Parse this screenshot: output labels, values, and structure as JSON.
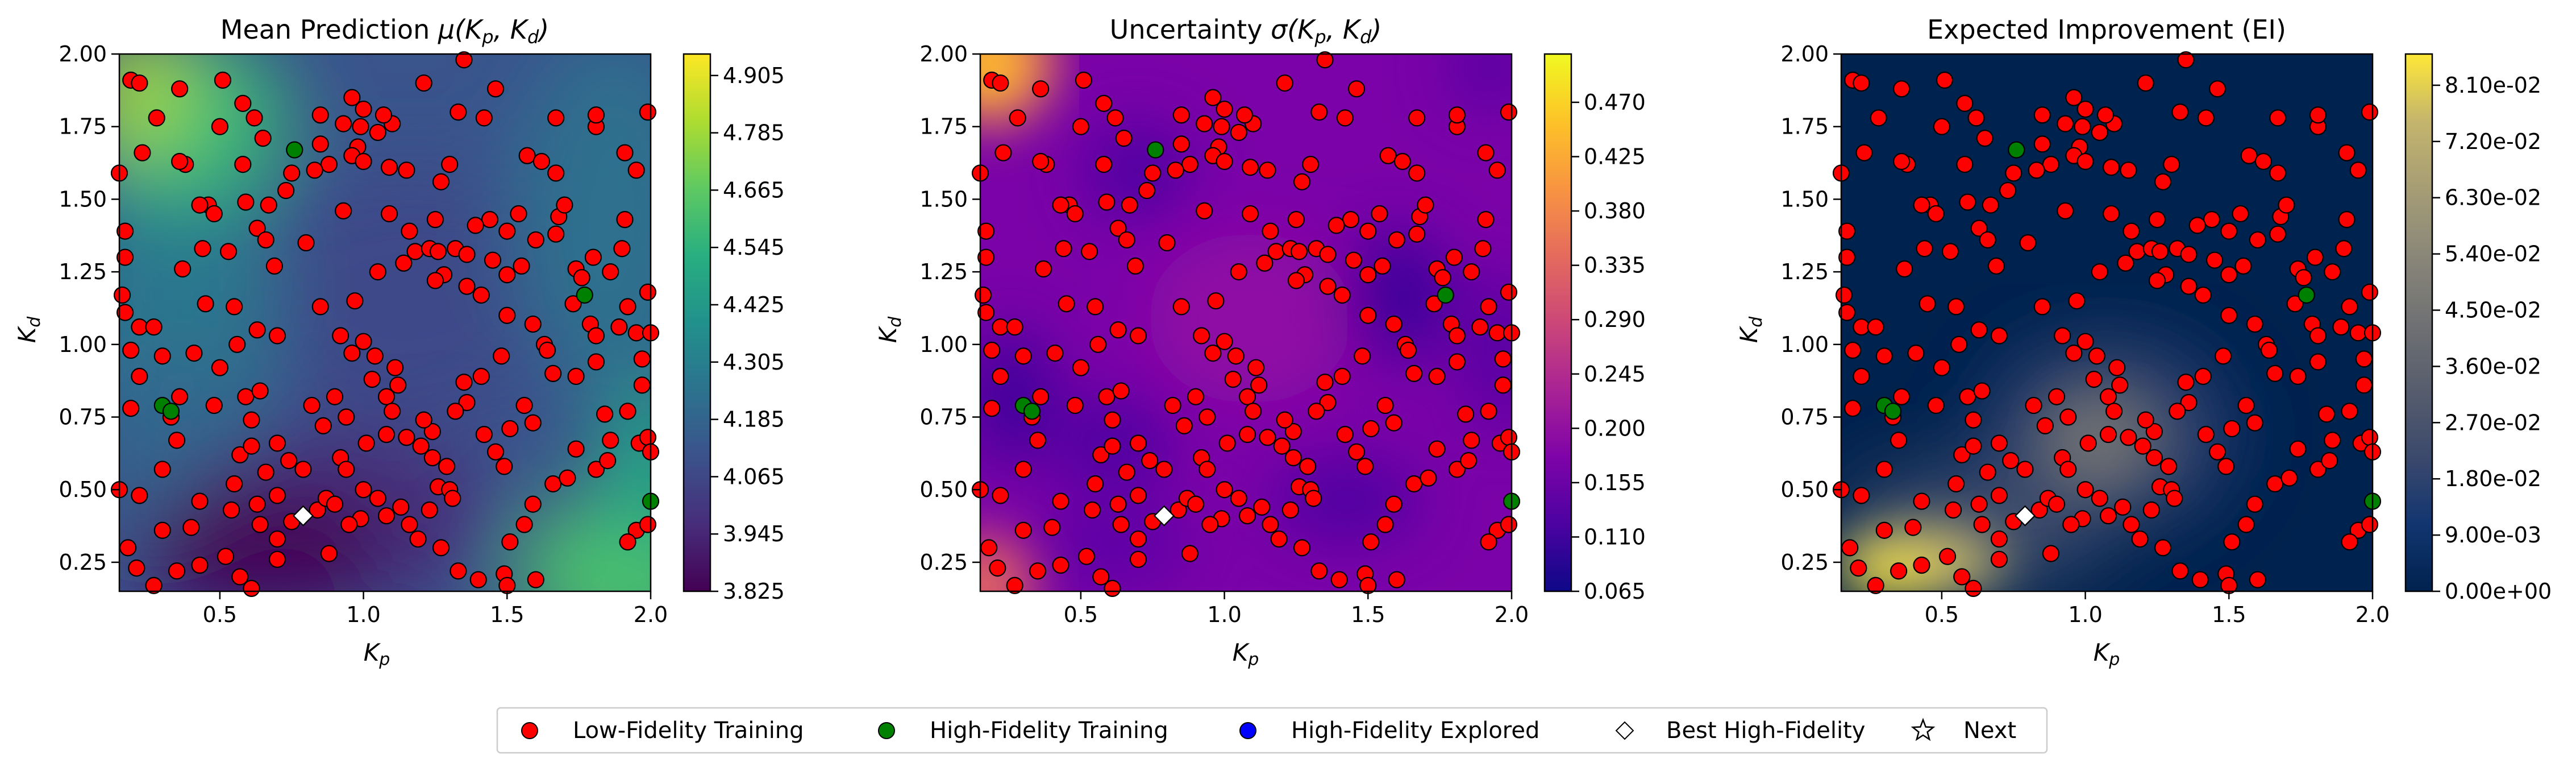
{
  "chart_data": [
    {
      "type": "heatmap",
      "title": "Mean Prediction μ(Kp, Kd)",
      "title_main": "Mean Prediction ",
      "title_sym": "μ(",
      "xlabel": "K_p",
      "ylabel": "K_d",
      "xlim": [
        0.15,
        2.0
      ],
      "ylim": [
        0.15,
        2.0
      ],
      "xticks": [
        "0.5",
        "1.0",
        "1.5",
        "2.0"
      ],
      "xtick_values": [
        0.5,
        1.0,
        1.5,
        2.0
      ],
      "yticks": [
        "0.25",
        "0.50",
        "0.75",
        "1.00",
        "1.25",
        "1.50",
        "1.75",
        "2.00"
      ],
      "ytick_values": [
        0.25,
        0.5,
        0.75,
        1.0,
        1.25,
        1.5,
        1.75,
        2.0
      ],
      "colormap": "viridis",
      "colorbar_range": [
        3.825,
        4.95
      ],
      "colorbar_ticks": [
        "3.825",
        "3.945",
        "4.065",
        "4.185",
        "4.305",
        "4.425",
        "4.545",
        "4.665",
        "4.785",
        "4.905"
      ],
      "colorbar_tick_values": [
        3.825,
        3.945,
        4.065,
        4.185,
        4.305,
        4.425,
        4.545,
        4.665,
        4.785,
        4.905
      ]
    },
    {
      "type": "heatmap",
      "title": "Uncertainty σ(Kp, Kd)",
      "title_main": "Uncertainty ",
      "title_sym": "σ(",
      "xlabel": "K_p",
      "ylabel": "K_d",
      "xlim": [
        0.15,
        2.0
      ],
      "ylim": [
        0.15,
        2.0
      ],
      "xticks": [
        "0.5",
        "1.0",
        "1.5",
        "2.0"
      ],
      "xtick_values": [
        0.5,
        1.0,
        1.5,
        2.0
      ],
      "yticks": [
        "0.25",
        "0.50",
        "0.75",
        "1.00",
        "1.25",
        "1.50",
        "1.75",
        "2.00"
      ],
      "ytick_values": [
        0.25,
        0.5,
        0.75,
        1.0,
        1.25,
        1.5,
        1.75,
        2.0
      ],
      "colormap": "plasma",
      "colorbar_range": [
        0.065,
        0.51
      ],
      "colorbar_ticks": [
        "0.065",
        "0.110",
        "0.155",
        "0.200",
        "0.245",
        "0.290",
        "0.335",
        "0.380",
        "0.425",
        "0.470"
      ],
      "colorbar_tick_values": [
        0.065,
        0.11,
        0.155,
        0.2,
        0.245,
        0.29,
        0.335,
        0.38,
        0.425,
        0.47
      ]
    },
    {
      "type": "heatmap",
      "title": "Expected Improvement (EI)",
      "xlabel": "K_p",
      "ylabel": "K_d",
      "xlim": [
        0.15,
        2.0
      ],
      "ylim": [
        0.15,
        2.0
      ],
      "xticks": [
        "0.5",
        "1.0",
        "1.5",
        "2.0"
      ],
      "xtick_values": [
        0.5,
        1.0,
        1.5,
        2.0
      ],
      "yticks": [
        "0.25",
        "0.50",
        "0.75",
        "1.00",
        "1.25",
        "1.50",
        "1.75",
        "2.00"
      ],
      "ytick_values": [
        0.25,
        0.5,
        0.75,
        1.0,
        1.25,
        1.5,
        1.75,
        2.0
      ],
      "colormap": "cividis",
      "colorbar_range": [
        0.0,
        0.086
      ],
      "colorbar_ticks": [
        "0.00e+00",
        "9.00e-03",
        "1.80e-02",
        "2.70e-02",
        "3.60e-02",
        "4.50e-02",
        "5.40e-02",
        "6.30e-02",
        "7.20e-02",
        "8.10e-02"
      ],
      "colorbar_tick_values": [
        0.0,
        0.009,
        0.018,
        0.027,
        0.036,
        0.045,
        0.054,
        0.063,
        0.072,
        0.081
      ]
    }
  ],
  "points": {
    "low_fidelity": [
      [
        0.19,
        1.91
      ],
      [
        0.22,
        1.9
      ],
      [
        0.36,
        1.88
      ],
      [
        0.28,
        1.78
      ],
      [
        0.15,
        1.59
      ],
      [
        0.23,
        1.66
      ],
      [
        0.38,
        1.62
      ],
      [
        0.36,
        1.63
      ],
      [
        0.17,
        1.39
      ],
      [
        0.17,
        1.3
      ],
      [
        0.16,
        1.17
      ],
      [
        0.17,
        1.11
      ],
      [
        0.22,
        1.06
      ],
      [
        0.19,
        0.98
      ],
      [
        0.27,
        1.06
      ],
      [
        0.3,
        0.96
      ],
      [
        0.22,
        0.89
      ],
      [
        0.19,
        0.78
      ],
      [
        0.36,
        0.82
      ],
      [
        0.33,
        0.75
      ],
      [
        0.35,
        0.67
      ],
      [
        0.3,
        0.57
      ],
      [
        0.22,
        0.48
      ],
      [
        0.15,
        0.5
      ],
      [
        0.18,
        0.3
      ],
      [
        0.21,
        0.23
      ],
      [
        0.27,
        0.17
      ],
      [
        0.43,
        0.46
      ],
      [
        0.4,
        0.37
      ],
      [
        0.52,
        0.27
      ],
      [
        0.57,
        0.2
      ],
      [
        0.61,
        0.16
      ],
      [
        0.54,
        0.43
      ],
      [
        0.63,
        0.45
      ],
      [
        0.7,
        0.48
      ],
      [
        0.66,
        0.56
      ],
      [
        0.74,
        0.6
      ],
      [
        0.79,
        0.57
      ],
      [
        0.82,
        0.79
      ],
      [
        0.86,
        0.72
      ],
      [
        0.7,
        0.66
      ],
      [
        0.61,
        0.74
      ],
      [
        0.57,
        0.62
      ],
      [
        0.48,
        0.79
      ],
      [
        0.5,
        0.92
      ],
      [
        0.41,
        0.97
      ],
      [
        0.45,
        1.14
      ],
      [
        0.55,
        1.13
      ],
      [
        0.63,
        1.05
      ],
      [
        0.7,
        1.03
      ],
      [
        0.59,
        0.82
      ],
      [
        0.64,
        0.84
      ],
      [
        0.56,
        1.0
      ],
      [
        0.46,
        1.48
      ],
      [
        0.44,
        1.33
      ],
      [
        0.37,
        1.26
      ],
      [
        0.43,
        1.48
      ],
      [
        0.48,
        1.45
      ],
      [
        0.53,
        1.32
      ],
      [
        0.63,
        1.4
      ],
      [
        0.67,
        1.48
      ],
      [
        0.75,
        1.59
      ],
      [
        0.66,
        1.36
      ],
      [
        0.59,
        1.49
      ],
      [
        0.58,
        1.62
      ],
      [
        0.62,
        1.78
      ],
      [
        0.65,
        1.71
      ],
      [
        0.73,
        1.53
      ],
      [
        0.69,
        1.27
      ],
      [
        0.8,
        1.35
      ],
      [
        0.85,
        1.13
      ],
      [
        0.92,
        1.03
      ],
      [
        0.96,
        0.97
      ],
      [
        0.9,
        0.82
      ],
      [
        0.92,
        0.61
      ],
      [
        0.94,
        0.57
      ],
      [
        1.0,
        0.5
      ],
      [
        1.05,
        0.47
      ],
      [
        1.08,
        0.41
      ],
      [
        1.13,
        0.44
      ],
      [
        0.99,
        0.4
      ],
      [
        0.95,
        0.38
      ],
      [
        0.88,
        0.28
      ],
      [
        0.7,
        0.26
      ],
      [
        0.7,
        0.33
      ],
      [
        1.04,
        0.96
      ],
      [
        1.11,
        0.92
      ],
      [
        1.08,
        0.82
      ],
      [
        1.12,
        0.86
      ],
      [
        1.01,
        0.66
      ],
      [
        1.08,
        0.69
      ],
      [
        1.15,
        0.68
      ],
      [
        1.24,
        0.7
      ],
      [
        1.21,
        0.74
      ],
      [
        1.26,
        0.51
      ],
      [
        1.3,
        0.5
      ],
      [
        1.31,
        0.47
      ],
      [
        1.23,
        0.43
      ],
      [
        1.16,
        0.38
      ],
      [
        1.19,
        0.33
      ],
      [
        1.27,
        0.3
      ],
      [
        1.33,
        0.22
      ],
      [
        1.4,
        0.19
      ],
      [
        1.49,
        0.21
      ],
      [
        1.5,
        0.17
      ],
      [
        1.6,
        0.19
      ],
      [
        1.51,
        0.32
      ],
      [
        1.56,
        0.38
      ],
      [
        1.59,
        0.45
      ],
      [
        1.66,
        0.52
      ],
      [
        1.71,
        0.54
      ],
      [
        1.74,
        0.64
      ],
      [
        1.81,
        0.57
      ],
      [
        1.85,
        0.6
      ],
      [
        1.86,
        0.67
      ],
      [
        1.95,
        0.36
      ],
      [
        1.99,
        0.38
      ],
      [
        1.92,
        0.32
      ],
      [
        1.96,
        0.66
      ],
      [
        1.99,
        0.68
      ],
      [
        2.0,
        0.63
      ],
      [
        1.92,
        0.77
      ],
      [
        1.97,
        0.86
      ],
      [
        1.95,
        1.04
      ],
      [
        1.97,
        0.95
      ],
      [
        2.0,
        1.04
      ],
      [
        1.81,
        0.94
      ],
      [
        1.84,
        0.76
      ],
      [
        1.74,
        0.89
      ],
      [
        1.66,
        0.9
      ],
      [
        1.63,
        1.0
      ],
      [
        1.59,
        1.07
      ],
      [
        1.5,
        1.1
      ],
      [
        1.48,
        0.96
      ],
      [
        1.41,
        0.89
      ],
      [
        1.36,
        0.8
      ],
      [
        1.32,
        0.77
      ],
      [
        1.35,
        0.87
      ],
      [
        1.42,
        0.69
      ],
      [
        1.46,
        0.63
      ],
      [
        1.49,
        0.58
      ],
      [
        1.51,
        0.71
      ],
      [
        1.56,
        0.79
      ],
      [
        1.59,
        0.73
      ],
      [
        1.29,
        0.58
      ],
      [
        1.24,
        0.61
      ],
      [
        1.2,
        0.65
      ],
      [
        1.1,
        0.77
      ],
      [
        1.03,
        0.88
      ],
      [
        1.0,
        1.01
      ],
      [
        0.97,
        1.15
      ],
      [
        1.05,
        1.25
      ],
      [
        1.14,
        1.28
      ],
      [
        1.18,
        1.32
      ],
      [
        1.23,
        1.33
      ],
      [
        1.26,
        1.32
      ],
      [
        1.32,
        1.33
      ],
      [
        1.36,
        1.31
      ],
      [
        1.28,
        1.24
      ],
      [
        1.25,
        1.22
      ],
      [
        1.36,
        1.2
      ],
      [
        1.41,
        1.17
      ],
      [
        1.45,
        1.29
      ],
      [
        1.5,
        1.24
      ],
      [
        1.55,
        1.27
      ],
      [
        1.6,
        1.36
      ],
      [
        1.68,
        1.44
      ],
      [
        1.7,
        1.48
      ],
      [
        1.54,
        1.45
      ],
      [
        1.5,
        1.39
      ],
      [
        1.44,
        1.43
      ],
      [
        1.39,
        1.41
      ],
      [
        1.25,
        1.43
      ],
      [
        1.27,
        1.56
      ],
      [
        1.3,
        1.62
      ],
      [
        1.33,
        1.8
      ],
      [
        1.21,
        1.9
      ],
      [
        1.1,
        1.76
      ],
      [
        1.07,
        1.79
      ],
      [
        1.05,
        1.73
      ],
      [
        0.98,
        1.68
      ],
      [
        0.93,
        1.76
      ],
      [
        0.96,
        1.65
      ],
      [
        0.85,
        1.69
      ],
      [
        0.85,
        1.79
      ],
      [
        0.96,
        1.85
      ],
      [
        1.0,
        1.81
      ],
      [
        0.99,
        1.75
      ],
      [
        1.15,
        1.6
      ],
      [
        1.09,
        1.61
      ],
      [
        1.0,
        1.63
      ],
      [
        1.16,
        1.39
      ],
      [
        1.09,
        1.45
      ],
      [
        0.93,
        1.46
      ],
      [
        0.88,
        1.62
      ],
      [
        0.83,
        1.6
      ],
      [
        0.5,
        1.75
      ],
      [
        0.58,
        1.83
      ],
      [
        0.51,
        1.91
      ],
      [
        1.35,
        1.98
      ],
      [
        1.42,
        1.78
      ],
      [
        1.46,
        1.88
      ],
      [
        1.57,
        1.65
      ],
      [
        1.62,
        1.63
      ],
      [
        1.67,
        1.59
      ],
      [
        1.67,
        1.38
      ],
      [
        1.74,
        1.26
      ],
      [
        1.76,
        1.23
      ],
      [
        1.8,
        1.3
      ],
      [
        1.86,
        1.25
      ],
      [
        1.9,
        1.33
      ],
      [
        1.91,
        1.43
      ],
      [
        1.95,
        1.6
      ],
      [
        1.91,
        1.66
      ],
      [
        1.99,
        1.8
      ],
      [
        1.81,
        1.75
      ],
      [
        1.81,
        1.79
      ],
      [
        1.67,
        1.78
      ],
      [
        1.73,
        1.14
      ],
      [
        1.64,
        0.98
      ],
      [
        1.79,
        1.07
      ],
      [
        1.81,
        1.03
      ],
      [
        1.89,
        1.06
      ],
      [
        1.92,
        1.13
      ],
      [
        1.99,
        1.18
      ],
      [
        0.43,
        0.24
      ],
      [
        0.35,
        0.22
      ],
      [
        0.3,
        0.36
      ],
      [
        0.64,
        0.38
      ],
      [
        0.84,
        0.43
      ],
      [
        0.87,
        0.47
      ],
      [
        0.94,
        0.75
      ],
      [
        0.9,
        0.45
      ],
      [
        0.61,
        0.65
      ],
      [
        0.55,
        0.52
      ],
      [
        0.75,
        0.39
      ]
    ],
    "high_fidelity": [
      [
        0.76,
        1.67
      ],
      [
        0.3,
        0.79
      ],
      [
        0.33,
        0.77
      ],
      [
        1.77,
        1.17
      ],
      [
        2.0,
        0.46
      ]
    ],
    "best": [
      0.79,
      0.41
    ]
  },
  "legend": {
    "low_fidelity_training": "Low-Fidelity Training",
    "high_fidelity_training": "High-Fidelity Training",
    "high_fidelity_explored": "High-Fidelity Explored",
    "best_high_fidelity": "Best High-Fidelity",
    "next": "Next"
  },
  "colors": {
    "low_fidelity": "#ff0000",
    "high_fidelity": "#008000",
    "explored": "#0000ff",
    "best": "#ffffff"
  },
  "axis_letters": {
    "x": "K",
    "x_sub": "p",
    "y": "K",
    "y_sub": "d",
    "comma": ",",
    "close": ")"
  }
}
